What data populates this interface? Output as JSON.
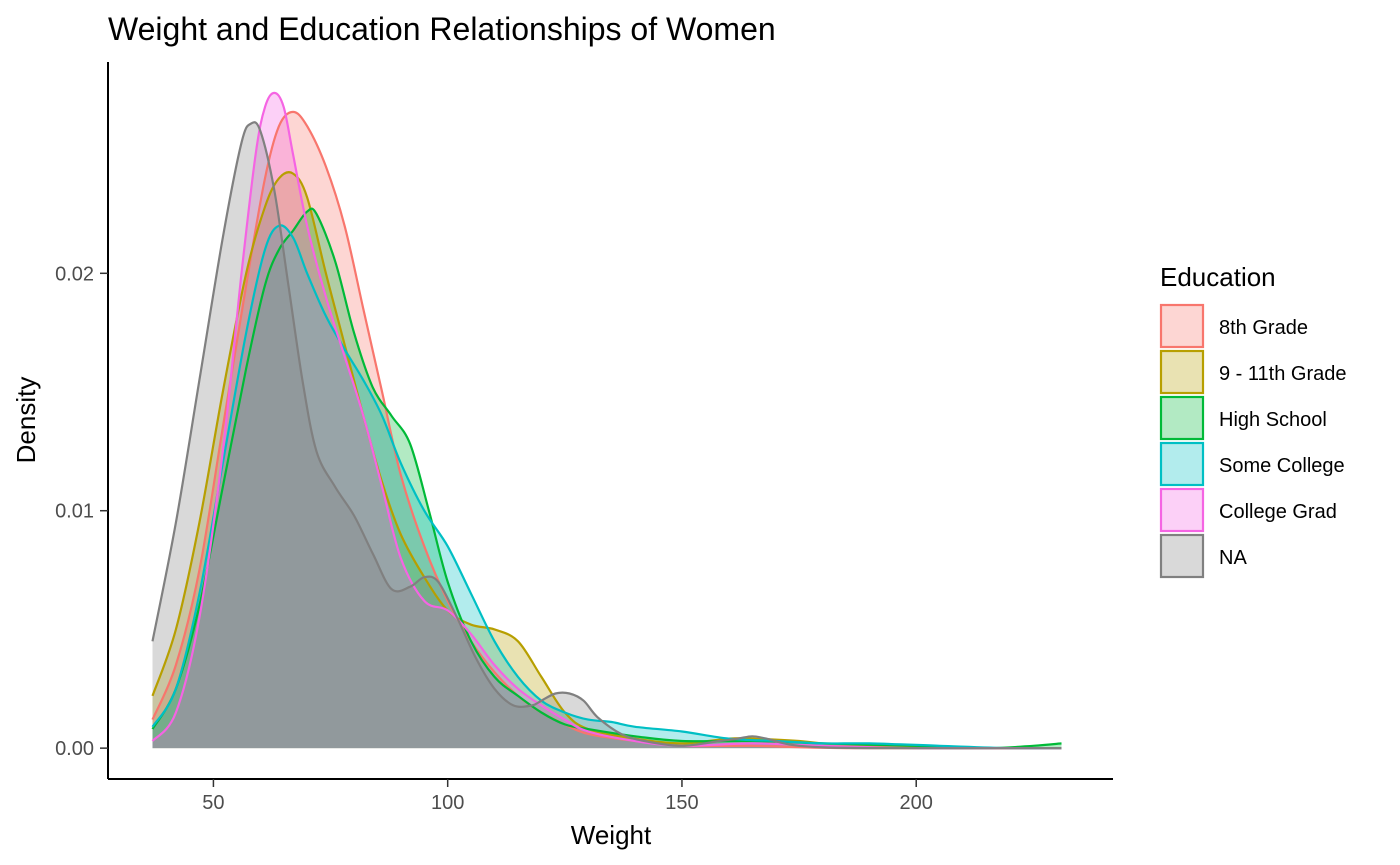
{
  "chart_data": {
    "type": "area",
    "title": "Weight and Education Relationships of Women",
    "xlabel": "Weight",
    "ylabel": "Density",
    "xlim": [
      27.5,
      242
    ],
    "ylim": [
      -0.0013,
      0.0289
    ],
    "x_ticks": [
      50,
      100,
      150,
      200
    ],
    "x_tick_labels": [
      "50",
      "100",
      "150",
      "200"
    ],
    "y_ticks": [
      0,
      0.01,
      0.02
    ],
    "y_tick_labels": [
      "0.00",
      "0.01",
      "0.02"
    ],
    "grid": false,
    "legend": {
      "title": "Education",
      "position": "right"
    },
    "fill_opacity": 0.3,
    "series": [
      {
        "name": "8th Grade",
        "color": "#F8766D",
        "points": [
          [
            37,
            0.0012
          ],
          [
            42,
            0.0035
          ],
          [
            47,
            0.0075
          ],
          [
            52,
            0.0135
          ],
          [
            57,
            0.0195
          ],
          [
            61,
            0.024
          ],
          [
            64,
            0.0262
          ],
          [
            67,
            0.0268
          ],
          [
            70,
            0.0262
          ],
          [
            74,
            0.0245
          ],
          [
            78,
            0.022
          ],
          [
            82,
            0.0185
          ],
          [
            86,
            0.015
          ],
          [
            90,
            0.0115
          ],
          [
            95,
            0.0085
          ],
          [
            100,
            0.0062
          ],
          [
            105,
            0.0045
          ],
          [
            110,
            0.0032
          ],
          [
            115,
            0.0022
          ],
          [
            120,
            0.0015
          ],
          [
            125,
            0.001
          ],
          [
            130,
            0.0006
          ],
          [
            140,
            0.0003
          ],
          [
            150,
            0.0001
          ],
          [
            165,
            0.0001
          ],
          [
            185,
            0.0
          ],
          [
            231,
            0.0
          ]
        ]
      },
      {
        "name": "9 - 11th Grade",
        "color": "#B79F00",
        "points": [
          [
            37,
            0.0022
          ],
          [
            42,
            0.005
          ],
          [
            47,
            0.0095
          ],
          [
            52,
            0.015
          ],
          [
            57,
            0.02
          ],
          [
            61,
            0.0228
          ],
          [
            64,
            0.024
          ],
          [
            67,
            0.0242
          ],
          [
            70,
            0.0232
          ],
          [
            74,
            0.02
          ],
          [
            78,
            0.017
          ],
          [
            82,
            0.014
          ],
          [
            86,
            0.0112
          ],
          [
            90,
            0.009
          ],
          [
            95,
            0.0072
          ],
          [
            100,
            0.0058
          ],
          [
            105,
            0.0052
          ],
          [
            110,
            0.005
          ],
          [
            115,
            0.0045
          ],
          [
            120,
            0.003
          ],
          [
            125,
            0.0015
          ],
          [
            130,
            0.0008
          ],
          [
            140,
            0.0004
          ],
          [
            150,
            0.0002
          ],
          [
            160,
            0.0004
          ],
          [
            165,
            0.0004
          ],
          [
            175,
            0.0003
          ],
          [
            185,
            0.0001
          ],
          [
            195,
            0.0001
          ],
          [
            210,
            0.0
          ],
          [
            231,
            0.0
          ]
        ]
      },
      {
        "name": "High School",
        "color": "#00BA38",
        "points": [
          [
            37,
            0.0008
          ],
          [
            42,
            0.0025
          ],
          [
            47,
            0.006
          ],
          [
            52,
            0.011
          ],
          [
            57,
            0.016
          ],
          [
            61,
            0.0195
          ],
          [
            64,
            0.021
          ],
          [
            67,
            0.0218
          ],
          [
            70,
            0.0226
          ],
          [
            72,
            0.0225
          ],
          [
            76,
            0.0205
          ],
          [
            80,
            0.0175
          ],
          [
            84,
            0.0152
          ],
          [
            88,
            0.014
          ],
          [
            92,
            0.0128
          ],
          [
            96,
            0.01
          ],
          [
            100,
            0.007
          ],
          [
            105,
            0.0045
          ],
          [
            110,
            0.003
          ],
          [
            115,
            0.0022
          ],
          [
            120,
            0.0015
          ],
          [
            125,
            0.001
          ],
          [
            130,
            0.0008
          ],
          [
            140,
            0.0005
          ],
          [
            150,
            0.0003
          ],
          [
            165,
            0.0003
          ],
          [
            180,
            0.0002
          ],
          [
            200,
            0.0001
          ],
          [
            215,
            0.0
          ],
          [
            225,
            0.0001
          ],
          [
            231,
            0.0002
          ]
        ]
      },
      {
        "name": "Some College",
        "color": "#00BFC4",
        "points": [
          [
            37,
            0.0009
          ],
          [
            42,
            0.0025
          ],
          [
            47,
            0.0065
          ],
          [
            52,
            0.012
          ],
          [
            57,
            0.0175
          ],
          [
            61,
            0.021
          ],
          [
            64,
            0.022
          ],
          [
            67,
            0.0215
          ],
          [
            70,
            0.02
          ],
          [
            74,
            0.0182
          ],
          [
            78,
            0.0168
          ],
          [
            82,
            0.0155
          ],
          [
            86,
            0.014
          ],
          [
            90,
            0.012
          ],
          [
            95,
            0.01
          ],
          [
            100,
            0.0085
          ],
          [
            105,
            0.0065
          ],
          [
            110,
            0.0045
          ],
          [
            115,
            0.003
          ],
          [
            120,
            0.002
          ],
          [
            125,
            0.0015
          ],
          [
            130,
            0.0012
          ],
          [
            135,
            0.0011
          ],
          [
            140,
            0.0009
          ],
          [
            150,
            0.0007
          ],
          [
            160,
            0.0004
          ],
          [
            170,
            0.0003
          ],
          [
            180,
            0.0002
          ],
          [
            190,
            0.0002
          ],
          [
            205,
            0.0001
          ],
          [
            220,
            0.0
          ],
          [
            231,
            0.0
          ]
        ]
      },
      {
        "name": "College Grad",
        "color": "#F564E3",
        "points": [
          [
            37,
            0.0003
          ],
          [
            42,
            0.0015
          ],
          [
            47,
            0.0055
          ],
          [
            52,
            0.0125
          ],
          [
            56,
            0.02
          ],
          [
            59,
            0.025
          ],
          [
            61,
            0.027
          ],
          [
            63,
            0.0276
          ],
          [
            65,
            0.027
          ],
          [
            67,
            0.025
          ],
          [
            70,
            0.022
          ],
          [
            74,
            0.019
          ],
          [
            78,
            0.0165
          ],
          [
            82,
            0.014
          ],
          [
            86,
            0.011
          ],
          [
            90,
            0.008
          ],
          [
            95,
            0.0062
          ],
          [
            100,
            0.0058
          ],
          [
            105,
            0.0048
          ],
          [
            110,
            0.0035
          ],
          [
            115,
            0.0025
          ],
          [
            120,
            0.0018
          ],
          [
            125,
            0.0012
          ],
          [
            130,
            0.0007
          ],
          [
            140,
            0.0003
          ],
          [
            150,
            0.0001
          ],
          [
            165,
            0.0002
          ],
          [
            180,
            0.0001
          ],
          [
            200,
            0.0
          ],
          [
            231,
            0.0
          ]
        ]
      },
      {
        "name": "NA",
        "color": "#808080",
        "points": [
          [
            37,
            0.0045
          ],
          [
            42,
            0.0095
          ],
          [
            47,
            0.0155
          ],
          [
            52,
            0.0215
          ],
          [
            56,
            0.0255
          ],
          [
            58,
            0.0263
          ],
          [
            60,
            0.026
          ],
          [
            63,
            0.0235
          ],
          [
            66,
            0.0195
          ],
          [
            69,
            0.0155
          ],
          [
            72,
            0.0125
          ],
          [
            76,
            0.011
          ],
          [
            80,
            0.0098
          ],
          [
            84,
            0.0082
          ],
          [
            88,
            0.0067
          ],
          [
            92,
            0.0068
          ],
          [
            95,
            0.0072
          ],
          [
            98,
            0.007
          ],
          [
            102,
            0.0055
          ],
          [
            106,
            0.0038
          ],
          [
            110,
            0.0025
          ],
          [
            114,
            0.0018
          ],
          [
            118,
            0.0018
          ],
          [
            120,
            0.002
          ],
          [
            123,
            0.0023
          ],
          [
            126,
            0.0023
          ],
          [
            129,
            0.002
          ],
          [
            132,
            0.0013
          ],
          [
            137,
            0.0006
          ],
          [
            142,
            0.0003
          ],
          [
            150,
            0.0001
          ],
          [
            158,
            0.0003
          ],
          [
            162,
            0.0004
          ],
          [
            165,
            0.0005
          ],
          [
            168,
            0.0004
          ],
          [
            175,
            0.0001
          ],
          [
            190,
            0.0
          ],
          [
            231,
            0.0
          ]
        ]
      }
    ]
  }
}
